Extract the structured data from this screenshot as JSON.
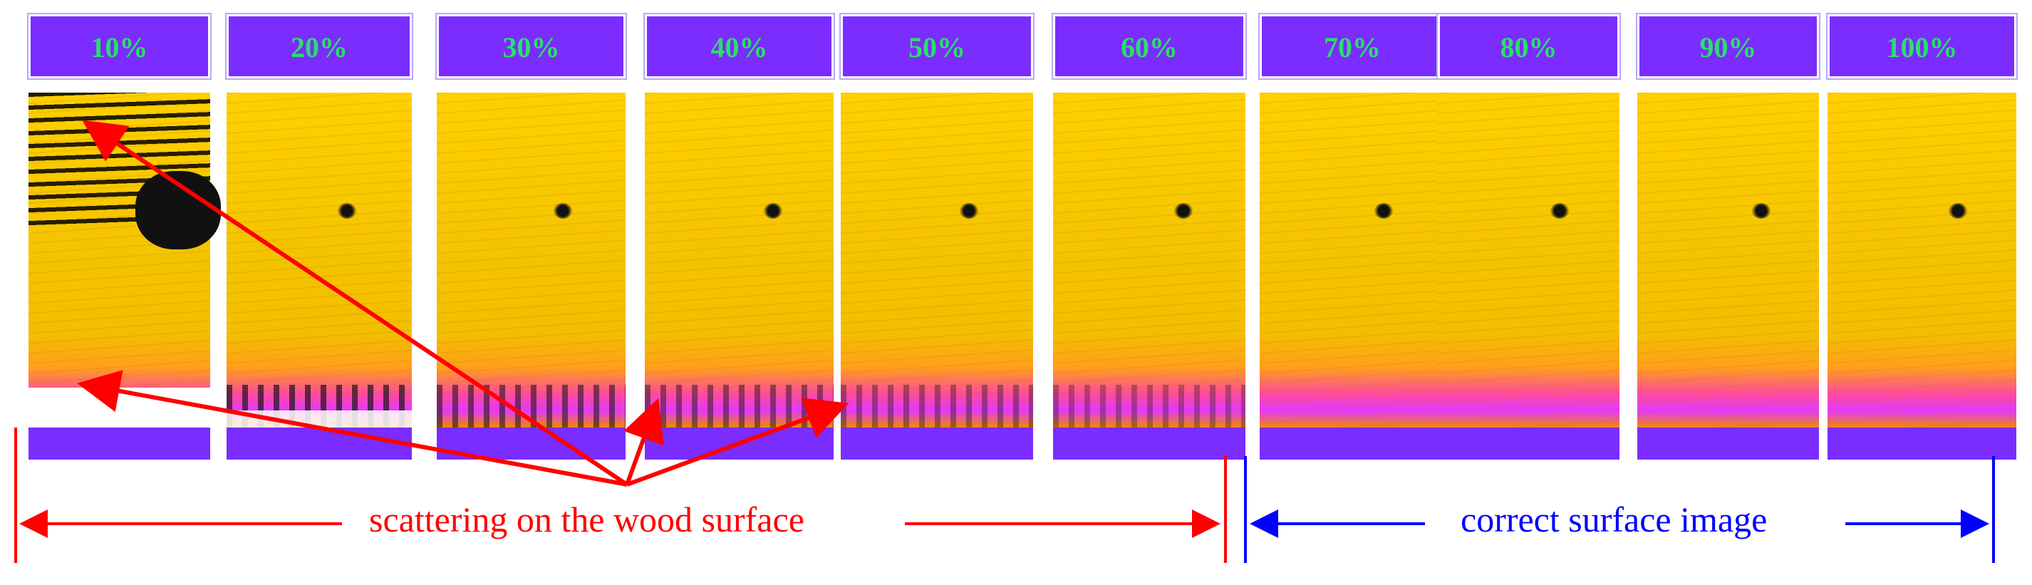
{
  "panels": [
    {
      "label": "10%",
      "scatter_level": 1.0
    },
    {
      "label": "20%",
      "scatter_level": 0.7
    },
    {
      "label": "30%",
      "scatter_level": 0.5
    },
    {
      "label": "40%",
      "scatter_level": 0.35
    },
    {
      "label": "50%",
      "scatter_level": 0.2
    },
    {
      "label": "60%",
      "scatter_level": 0.1
    },
    {
      "label": "70%",
      "scatter_level": 0.0
    },
    {
      "label": "80%",
      "scatter_level": 0.0
    },
    {
      "label": "90%",
      "scatter_level": 0.0
    },
    {
      "label": "100%",
      "scatter_level": 0.0
    }
  ],
  "annotations": {
    "scattering_label": "scattering on the wood surface",
    "correct_label": "correct surface image"
  },
  "colors": {
    "header_bar": "#7b2cff",
    "header_text": "#29e06a",
    "scattering": "#ff0000",
    "correct": "#0000ff",
    "wood": "#ffd000"
  }
}
